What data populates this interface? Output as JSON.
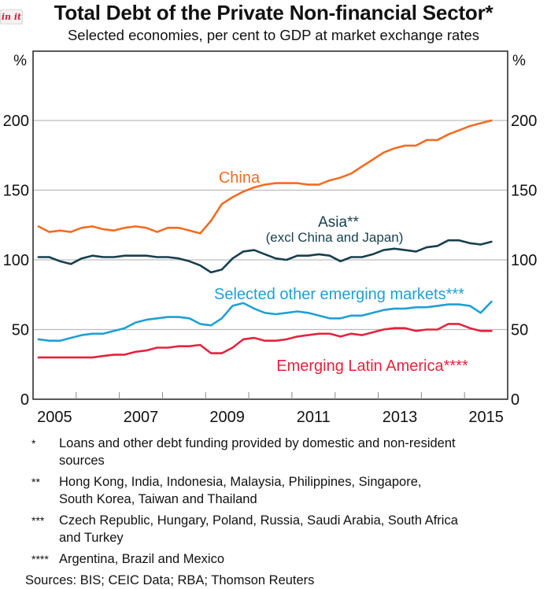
{
  "badge": {
    "label": "in it",
    "icon": "pin-it-badge-icon"
  },
  "chart_data": {
    "type": "line",
    "title": "Total Debt of the Private Non-financial Sector*",
    "subtitle": "Selected economies, per cent to GDP at market exchange rates",
    "xlabel": "",
    "ylabel_left": "%",
    "ylabel_right": "%",
    "ylim": [
      0,
      240
    ],
    "yticks": [
      0,
      50,
      100,
      150,
      200
    ],
    "ytick_labels": [
      "0",
      "50",
      "100",
      "150",
      "200"
    ],
    "xlim": [
      2005.0,
      2016.0
    ],
    "xtick_labels": [
      "2005",
      "2007",
      "2009",
      "2011",
      "2013",
      "2015"
    ],
    "xtick_label_positions": [
      2005.5,
      2007.5,
      2009.5,
      2011.5,
      2013.5,
      2015.5
    ],
    "xtick_marks": [
      2006,
      2007,
      2008,
      2009,
      2010,
      2011,
      2012,
      2013,
      2014,
      2015
    ],
    "grid": true,
    "frequency": "quarterly",
    "x_start": 2005.125,
    "x_step": 0.25,
    "series": [
      {
        "name": "China",
        "label": "China",
        "color": "#f26c22",
        "values": [
          124,
          120,
          121,
          120,
          123,
          124,
          122,
          121,
          123,
          124,
          123,
          120,
          123,
          123,
          121,
          119,
          128,
          140,
          145,
          149,
          152,
          154,
          155,
          155,
          155,
          154,
          154,
          157,
          159,
          162,
          167,
          172,
          177,
          180,
          182,
          182,
          186,
          186,
          190,
          193,
          196,
          198,
          200
        ]
      },
      {
        "name": "Asia** (excl China and Japan)",
        "label": "Asia**",
        "label2": "(excl China and Japan)",
        "color": "#173f4f",
        "values": [
          102,
          102,
          99,
          97,
          101,
          103,
          102,
          102,
          103,
          103,
          103,
          102,
          102,
          101,
          99,
          96,
          91,
          93,
          101,
          106,
          107,
          104,
          101,
          100,
          103,
          103,
          104,
          103,
          99,
          102,
          102,
          104,
          107,
          108,
          107,
          106,
          109,
          110,
          114,
          114,
          112,
          111,
          113
        ]
      },
      {
        "name": "Selected other emerging markets***",
        "label": "Selected other emerging markets***",
        "color": "#1fa0d4",
        "values": [
          43,
          42,
          42,
          44,
          46,
          47,
          47,
          49,
          51,
          55,
          57,
          58,
          59,
          59,
          58,
          54,
          53,
          58,
          67,
          69,
          65,
          62,
          61,
          62,
          63,
          62,
          60,
          58,
          58,
          60,
          60,
          62,
          64,
          65,
          65,
          66,
          66,
          67,
          68,
          68,
          67,
          62,
          70
        ]
      },
      {
        "name": "Emerging Latin America****",
        "label": "Emerging Latin America****",
        "color": "#e5233f",
        "values": [
          30,
          30,
          30,
          30,
          30,
          30,
          31,
          32,
          32,
          34,
          35,
          37,
          37,
          38,
          38,
          39,
          33,
          33,
          37,
          43,
          44,
          42,
          42,
          43,
          45,
          46,
          47,
          47,
          45,
          47,
          46,
          48,
          50,
          51,
          51,
          49,
          50,
          50,
          54,
          54,
          51,
          49,
          49
        ]
      }
    ]
  },
  "footnotes": [
    {
      "mark": "*",
      "lines": [
        "Loans and other debt funding provided by domestic and non-resident",
        "sources"
      ]
    },
    {
      "mark": "**",
      "lines": [
        "Hong Kong, India, Indonesia, Malaysia, Philippines, Singapore,",
        "South Korea, Taiwan and Thailand"
      ]
    },
    {
      "mark": "***",
      "lines": [
        "Czech Republic, Hungary, Poland, Russia, Saudi Arabia, South Africa",
        "and Turkey"
      ]
    },
    {
      "mark": "****",
      "lines": [
        "Argentina, Brazil and Mexico"
      ]
    }
  ],
  "sources": "Sources:  BIS; CEIC Data; RBA; Thomson Reuters"
}
